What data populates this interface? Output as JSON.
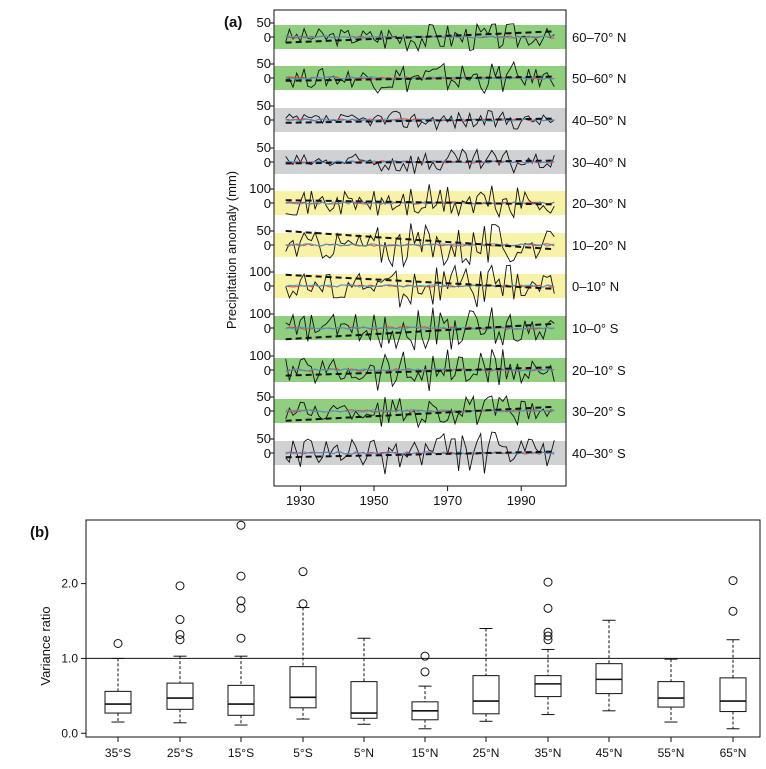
{
  "panel_a": {
    "label": "(a)",
    "ylabel": "Precipitation anomaly (mm)",
    "bands": [
      {
        "name": "60–70° N",
        "tick": "50",
        "zero": "0",
        "band": "green",
        "trend": [
          -20,
          20
        ]
      },
      {
        "name": "50–60° N",
        "tick": "50",
        "zero": "0",
        "band": "green",
        "trend": [
          -10,
          5
        ]
      },
      {
        "name": "40–50° N",
        "tick": "50",
        "zero": "0",
        "band": "gray",
        "trend": [
          -10,
          5
        ]
      },
      {
        "name": "30–40° N",
        "tick": "50",
        "zero": "0",
        "band": "gray",
        "trend": [
          -5,
          5
        ]
      },
      {
        "name": "20–30° N",
        "tick": "100",
        "zero": "0",
        "band": "yellow",
        "trend": [
          10,
          -5
        ]
      },
      {
        "name": "10–20° N",
        "tick": "50",
        "zero": "0",
        "band": "yellow",
        "trend": [
          50,
          -15
        ]
      },
      {
        "name": "0–10° N",
        "tick": "100",
        "zero": "0",
        "band": "yellow",
        "trend": [
          40,
          -10
        ]
      },
      {
        "name": "10–0° S",
        "tick": "100",
        "zero": "0",
        "band": "green",
        "trend": [
          -40,
          15
        ]
      },
      {
        "name": "20–10° S",
        "tick": "100",
        "zero": "0",
        "band": "green",
        "trend": [
          -20,
          10
        ]
      },
      {
        "name": "30–20° S",
        "tick": "50",
        "zero": "0",
        "band": "green",
        "trend": [
          -35,
          15
        ]
      },
      {
        "name": "40–30° S",
        "tick": "50",
        "zero": "0",
        "band": "gray",
        "trend": [
          -15,
          5
        ]
      }
    ],
    "xticks": [
      "1930",
      "1950",
      "1970",
      "1990"
    ],
    "colors": {
      "green": "#8fcf7e",
      "gray": "#cfd1d3",
      "yellow": "#f7f2a6",
      "observed": "#111111",
      "model_red": "#e8383d",
      "model_blue": "#3a9bd5",
      "trend": "#111111"
    }
  },
  "panel_b": {
    "label": "(b)",
    "ylabel": "Variance ratio",
    "yticks": [
      "0.0",
      "1.0",
      "2.0"
    ],
    "reference_line": 1.0
  },
  "chart_data": [
    {
      "type": "line",
      "title": "",
      "xlabel": "",
      "ylabel": "Precipitation anomaly (mm)",
      "xlim": [
        1925,
        2000
      ],
      "series": [
        {
          "name": "60–70° N",
          "trend_start": -20,
          "trend_end": 20
        },
        {
          "name": "50–60° N",
          "trend_start": -10,
          "trend_end": 5
        },
        {
          "name": "40–50° N",
          "trend_start": -10,
          "trend_end": 5
        },
        {
          "name": "30–40° N",
          "trend_start": -5,
          "trend_end": 5
        },
        {
          "name": "20–30° N",
          "trend_start": 10,
          "trend_end": -5
        },
        {
          "name": "10–20° N",
          "trend_start": 50,
          "trend_end": -15
        },
        {
          "name": "0–10° N",
          "trend_start": 40,
          "trend_end": -10
        },
        {
          "name": "10–0° S",
          "trend_start": -40,
          "trend_end": 15
        },
        {
          "name": "20–10° S",
          "trend_start": -20,
          "trend_end": 10
        },
        {
          "name": "30–20° S",
          "trend_start": -35,
          "trend_end": 15
        },
        {
          "name": "40–30° S",
          "trend_start": -15,
          "trend_end": 5
        }
      ]
    },
    {
      "type": "box",
      "title": "",
      "xlabel": "",
      "ylabel": "Variance ratio",
      "ylim": [
        -0.05,
        2.85
      ],
      "categories": [
        "35°S",
        "25°S",
        "15°S",
        "5°S",
        "5°N",
        "15°N",
        "25°N",
        "35°N",
        "45°N",
        "55°N",
        "65°N"
      ],
      "boxes": [
        {
          "min": 0.15,
          "q1": 0.27,
          "median": 0.39,
          "q3": 0.56,
          "max": 1.0,
          "outliers": [
            1.2
          ]
        },
        {
          "min": 0.14,
          "q1": 0.32,
          "median": 0.47,
          "q3": 0.67,
          "max": 1.03,
          "outliers": [
            1.25,
            1.32,
            1.52,
            1.97
          ]
        },
        {
          "min": 0.11,
          "q1": 0.24,
          "median": 0.39,
          "q3": 0.64,
          "max": 1.03,
          "outliers": [
            1.27,
            1.67,
            1.77,
            2.1,
            2.78
          ]
        },
        {
          "min": 0.19,
          "q1": 0.34,
          "median": 0.48,
          "q3": 0.89,
          "max": 1.68,
          "outliers": [
            1.73,
            2.16
          ]
        },
        {
          "min": 0.12,
          "q1": 0.2,
          "median": 0.27,
          "q3": 0.69,
          "max": 1.27,
          "outliers": []
        },
        {
          "min": 0.06,
          "q1": 0.18,
          "median": 0.3,
          "q3": 0.42,
          "max": 0.63,
          "outliers": [
            0.82,
            1.03
          ]
        },
        {
          "min": 0.16,
          "q1": 0.26,
          "median": 0.43,
          "q3": 0.77,
          "max": 1.4,
          "outliers": []
        },
        {
          "min": 0.25,
          "q1": 0.49,
          "median": 0.66,
          "q3": 0.77,
          "max": 1.12,
          "outliers": [
            1.25,
            1.3,
            1.35,
            1.67,
            2.02
          ]
        },
        {
          "min": 0.3,
          "q1": 0.53,
          "median": 0.72,
          "q3": 0.93,
          "max": 1.51,
          "outliers": []
        },
        {
          "min": 0.15,
          "q1": 0.35,
          "median": 0.47,
          "q3": 0.69,
          "max": 0.99,
          "outliers": []
        },
        {
          "min": 0.06,
          "q1": 0.29,
          "median": 0.43,
          "q3": 0.74,
          "max": 1.25,
          "outliers": [
            1.63,
            2.04
          ]
        }
      ]
    }
  ]
}
